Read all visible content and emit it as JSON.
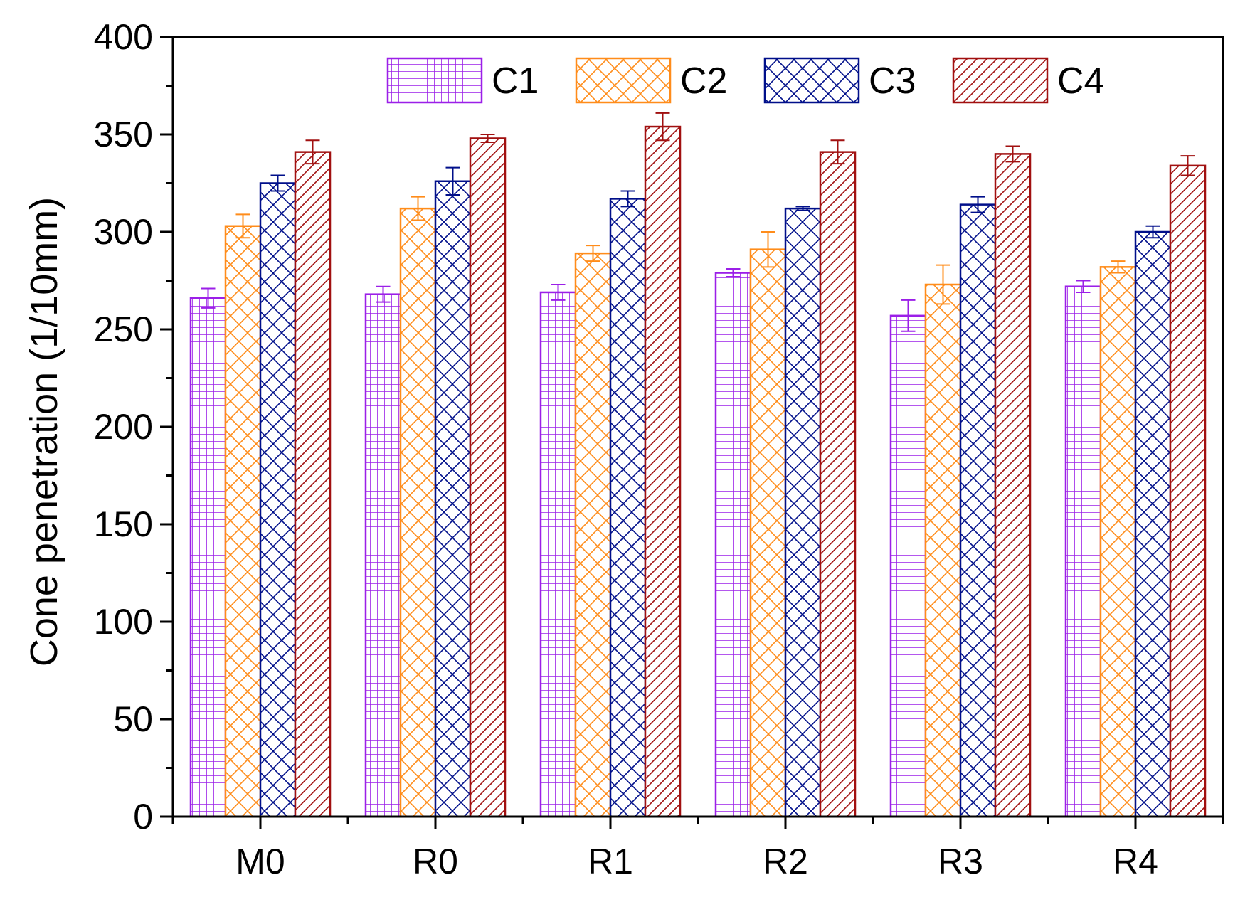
{
  "chart_data": {
    "type": "bar",
    "title": "",
    "xlabel": "",
    "ylabel": "Cone penetration (1/10mm)",
    "ylim": [
      0,
      400
    ],
    "yticks": [
      0,
      50,
      100,
      150,
      200,
      250,
      300,
      350,
      400
    ],
    "ytick_labels": [
      "0",
      "50",
      "100",
      "150",
      "200",
      "250",
      "300",
      "350",
      "400"
    ],
    "categories": [
      "M0",
      "R0",
      "R1",
      "R2",
      "R3",
      "R4"
    ],
    "grid": false,
    "legend_position": "top",
    "series": [
      {
        "name": "C1",
        "color": "#9b1fe8",
        "pattern": "grid",
        "values": [
          266,
          268,
          269,
          279,
          257,
          272
        ],
        "errors": [
          5,
          4,
          4,
          2,
          8,
          3
        ]
      },
      {
        "name": "C2",
        "color": "#ff8c1a",
        "pattern": "diag-cross",
        "values": [
          303,
          312,
          289,
          291,
          273,
          282
        ],
        "errors": [
          6,
          6,
          4,
          9,
          10,
          3
        ]
      },
      {
        "name": "C3",
        "color": "#000f8a",
        "pattern": "diag-cross-dense",
        "values": [
          325,
          326,
          317,
          312,
          314,
          300
        ],
        "errors": [
          4,
          7,
          4,
          1,
          4,
          3
        ]
      },
      {
        "name": "C4",
        "color": "#a11010",
        "pattern": "diag",
        "values": [
          341,
          348,
          354,
          341,
          340,
          334
        ],
        "errors": [
          6,
          2,
          7,
          6,
          4,
          5
        ]
      }
    ]
  }
}
